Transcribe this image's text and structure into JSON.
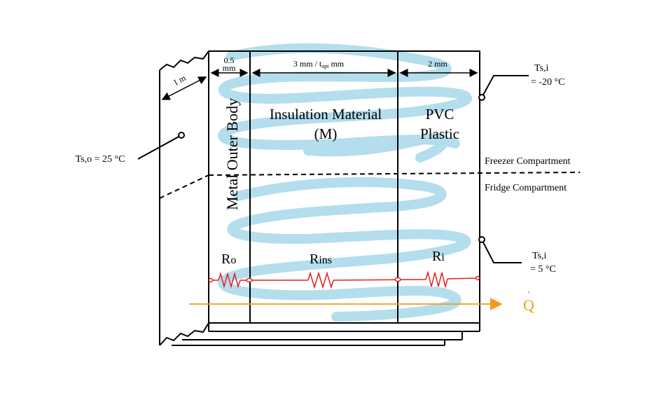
{
  "layers": {
    "metal": {
      "thickness": "0.5",
      "thickness_unit": "mm",
      "name": "Metal Outer Body"
    },
    "insulation": {
      "thickness_prefix": "3 mm / t",
      "thickness_sub": "opt",
      "thickness_suffix": " mm",
      "name_line1": "Insulation Material",
      "name_line2": "(M)"
    },
    "pvc": {
      "thickness": "2 mm",
      "name_line1": "PVC",
      "name_line2": "Plastic"
    }
  },
  "depth_label": "1 m",
  "outer_surface": {
    "label": "Ts,o = 25 °C"
  },
  "inner_surface_freezer": {
    "label_line1": "Ts,i",
    "label_line2": "= -20 °C"
  },
  "inner_surface_fridge": {
    "label_line1": "Ts,i",
    "label_line2": "= 5 °C"
  },
  "compartments": {
    "freezer": "Freezer Compartment",
    "fridge": "Fridge Compartment"
  },
  "resistances": [
    {
      "symbol": "R",
      "sub": "o"
    },
    {
      "symbol": "R",
      "sub": "ins"
    },
    {
      "symbol": "R",
      "sub": "i"
    }
  ],
  "heat_flow": {
    "symbol": "Q",
    "dot": "·"
  },
  "colors": {
    "line": "#000000",
    "resistor": "#e02020",
    "heat_arrow": "#f59a1a",
    "swirl": "#a8d8ea"
  }
}
